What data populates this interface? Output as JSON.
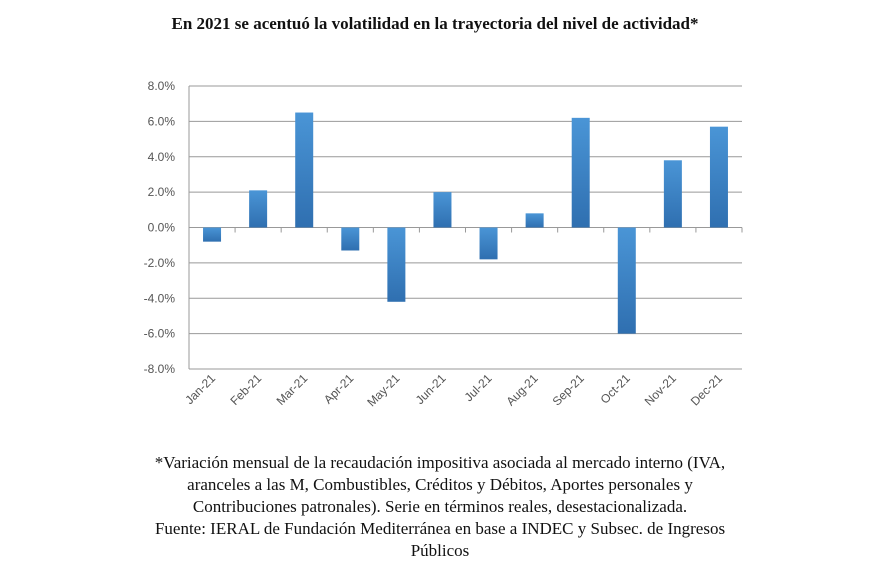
{
  "chart_data": {
    "type": "bar",
    "title": "En 2021 se acentuó la volatilidad en la trayectoria del nivel de actividad*",
    "categories": [
      "Jan-21",
      "Feb-21",
      "Mar-21",
      "Apr-21",
      "May-21",
      "Jun-21",
      "Jul-21",
      "Aug-21",
      "Sep-21",
      "Oct-21",
      "Nov-21",
      "Dec-21"
    ],
    "values": [
      -0.8,
      2.1,
      6.5,
      -1.3,
      -4.2,
      2.0,
      -1.8,
      0.8,
      6.2,
      -6.0,
      3.8,
      5.7
    ],
    "unit": "%",
    "ylim": [
      -8,
      8
    ],
    "yticks": [
      "8.0%",
      "6.0%",
      "4.0%",
      "2.0%",
      "0.0%",
      "-2.0%",
      "-4.0%",
      "-6.0%",
      "-8.0%"
    ],
    "grid": true,
    "bar_color": "#3b82c8",
    "xlabel": "",
    "ylabel": ""
  },
  "footnote": {
    "lines": [
      "*Variación mensual de la recaudación impositiva asociada al mercado interno (IVA,",
      "aranceles a las M, Combustibles, Créditos y Débitos, Aportes personales y",
      "Contribuciones patronales). Serie en términos reales, desestacionalizada.",
      "Fuente: IERAL de Fundación Mediterránea en base a INDEC y Subsec. de Ingresos",
      "Públicos"
    ]
  }
}
